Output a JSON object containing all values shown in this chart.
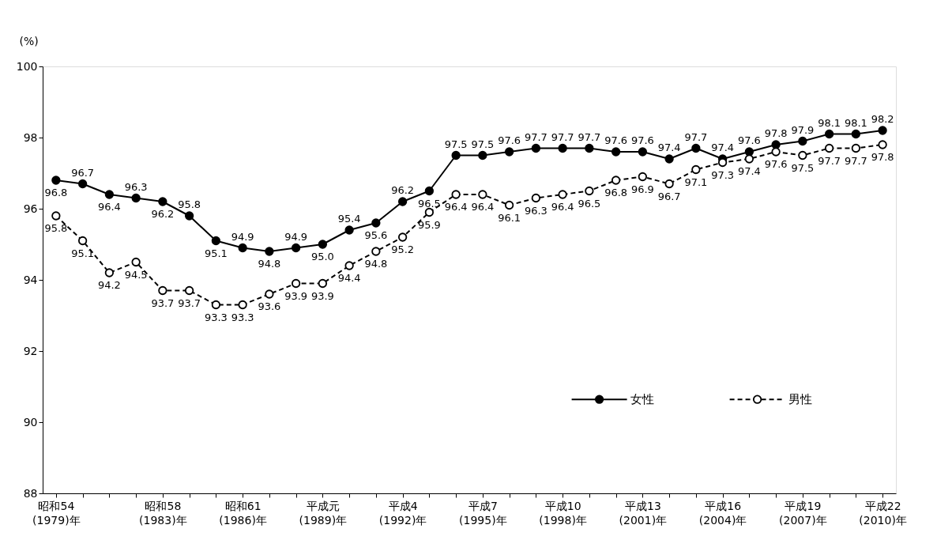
{
  "chart_data": {
    "type": "line",
    "ylabel": "(%)",
    "categories": [
      "昭和54\n(1979)年",
      null,
      null,
      null,
      "昭和58\n(1983)年",
      null,
      null,
      "昭和61\n(1986)年",
      null,
      null,
      "平成元\n(1989)年",
      null,
      null,
      "平成4\n(1992)年",
      null,
      null,
      "平成7\n(1995)年",
      null,
      null,
      "平成10\n(1998)年",
      null,
      null,
      "平成13\n(2001)年",
      null,
      null,
      "平成16\n(2004)年",
      null,
      null,
      "平成19\n(2007)年",
      null,
      null,
      "平成22\n(2010)年"
    ],
    "series": [
      {
        "name": "女性",
        "color": "#000000",
        "marker": "circle",
        "line_style": "solid",
        "values": [
          96.8,
          96.7,
          96.4,
          96.3,
          96.2,
          95.8,
          95.1,
          94.9,
          94.8,
          94.9,
          95.0,
          95.4,
          95.6,
          96.2,
          96.5,
          97.5,
          97.5,
          97.6,
          97.7,
          97.7,
          97.7,
          97.6,
          97.6,
          97.4,
          97.7,
          97.4,
          97.6,
          97.8,
          97.9,
          98.1,
          98.1,
          98.2
        ],
        "value_labels": [
          "96.8",
          "96.7",
          "96.4",
          "96.3",
          "96.2",
          "95.8",
          "95.1",
          "94.9",
          "94.8",
          "94.9",
          "95.0",
          "95.4",
          "95.6",
          "96.2",
          "96.5",
          "97.5",
          "97.5",
          "97.6",
          "97.7",
          "97.7",
          "97.7",
          "97.6",
          "97.6",
          "97.4",
          "97.7",
          "97.4",
          "97.6",
          "97.8",
          "97.9",
          "98.1",
          "98.1",
          "98.2"
        ]
      },
      {
        "name": "男性",
        "color": "#000000",
        "marker": "circle",
        "line_style": "dashed",
        "values": [
          95.8,
          95.1,
          94.2,
          94.5,
          93.7,
          93.7,
          93.3,
          93.3,
          93.6,
          93.9,
          93.9,
          94.4,
          94.8,
          95.2,
          95.9,
          96.4,
          96.4,
          96.1,
          96.3,
          96.4,
          96.5,
          96.8,
          96.9,
          96.7,
          97.1,
          97.3,
          97.4,
          97.6,
          97.5,
          97.7,
          97.7,
          97.8
        ],
        "value_labels": [
          "95.8",
          "95.1",
          "94.2",
          "94.5",
          "93.7",
          "93.7",
          "93.3",
          "93.3",
          "93.6",
          "93.9",
          "93.9",
          "94.4",
          "94.8",
          "95.2",
          "95.9",
          "96.4",
          "96.4",
          "96.1",
          "96.3",
          "96.4",
          "96.5",
          "96.8",
          "96.9",
          "96.7",
          "97.1",
          "97.3",
          "97.4",
          "97.6",
          "97.5",
          "97.7",
          "97.7",
          "97.8"
        ]
      }
    ],
    "ylim": [
      88,
      100
    ],
    "yticks": [
      88,
      90,
      92,
      94,
      96,
      98,
      100
    ],
    "grid": false,
    "legend": "bottom right"
  }
}
